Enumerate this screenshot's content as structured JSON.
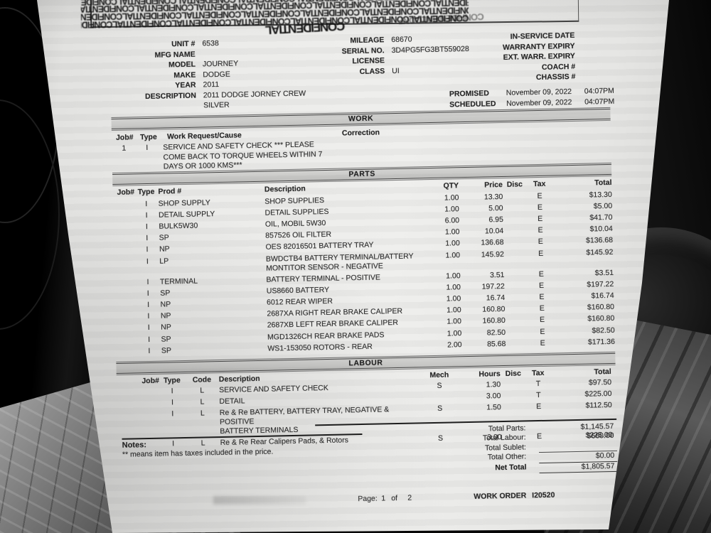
{
  "stamp": {
    "line": "CONFIDENTIALCONFIDENTIALCONFIDENTIALCONFIDENTIALCONFIDENTIALCONFIDENTIALCONFIDENTIAL"
  },
  "vehicle": {
    "left": [
      {
        "label": "UNIT #",
        "value": "6538"
      },
      {
        "label": "MFG NAME",
        "value": ""
      },
      {
        "label": "MODEL",
        "value": "JOURNEY"
      },
      {
        "label": "MAKE",
        "value": "DODGE"
      },
      {
        "label": "YEAR",
        "value": "2011"
      },
      {
        "label": "DESCRIPTION",
        "value": "2011 DODGE JORNEY CREW\nSILVER"
      }
    ],
    "mid": [
      {
        "label": "MILEAGE",
        "value": "68670"
      },
      {
        "label": "SERIAL NO.",
        "value": "3D4PG5FG3BT559028"
      },
      {
        "label": "LICENSE",
        "value": ""
      },
      {
        "label": "CLASS",
        "value": "UI"
      }
    ],
    "right": [
      {
        "label": "IN-SERVICE DATE",
        "value": ""
      },
      {
        "label": "WARRANTY EXPIRY",
        "value": ""
      },
      {
        "label": "EXT. WARR. EXPIRY",
        "value": ""
      },
      {
        "label": "COACH #",
        "value": ""
      },
      {
        "label": "CHASSIS #",
        "value": ""
      }
    ]
  },
  "schedule": {
    "promised_label": "PROMISED",
    "promised_date": "November 09, 2022",
    "promised_time": "04:07PM",
    "scheduled_label": "SCHEDULED",
    "scheduled_date": "November 09, 2022",
    "scheduled_time": "04:07PM"
  },
  "work": {
    "band": "WORK",
    "headers": {
      "job": "Job#",
      "type": "Type",
      "cause": "Work Request/Cause",
      "correction": "Correction"
    },
    "row": {
      "job": "1",
      "type": "I",
      "cause": "SERVICE AND SAFETY CHECK *** PLEASE\nCOME BACK TO TORQUE WHEELS WITHIN 7\nDAYS OR 1000 KMS***"
    }
  },
  "parts": {
    "band": "PARTS",
    "headers": {
      "job": "Job#",
      "type": "Type",
      "prod": "Prod #",
      "desc": "Description",
      "qty": "QTY",
      "price": "Price",
      "disc": "Disc",
      "tax": "Tax",
      "total": "Total"
    },
    "rows": [
      {
        "job": "",
        "type": "I",
        "prod": "SHOP SUPPLY",
        "desc": "SHOP SUPPLIES",
        "qty": "1.00",
        "price": "13.30",
        "disc": "",
        "tax": "E",
        "total": "$13.30"
      },
      {
        "job": "",
        "type": "I",
        "prod": "DETAIL SUPPLY",
        "desc": "DETAIL SUPPLIES",
        "qty": "1.00",
        "price": "5.00",
        "disc": "",
        "tax": "E",
        "total": "$5.00"
      },
      {
        "job": "",
        "type": "I",
        "prod": "BULK5W30",
        "desc": "OIL, MOBIL 5W30",
        "qty": "6.00",
        "price": "6.95",
        "disc": "",
        "tax": "E",
        "total": "$41.70"
      },
      {
        "job": "",
        "type": "I",
        "prod": "SP",
        "desc": "857526 OIL FILTER",
        "qty": "1.00",
        "price": "10.04",
        "disc": "",
        "tax": "E",
        "total": "$10.04"
      },
      {
        "job": "",
        "type": "I",
        "prod": "NP",
        "desc": "OES 82016501 BATTERY TRAY",
        "qty": "1.00",
        "price": "136.68",
        "disc": "",
        "tax": "E",
        "total": "$136.68"
      },
      {
        "job": "",
        "type": "I",
        "prod": "LP",
        "desc": "BWDCTB4 BATTERY TERMINAL/BATTERY\nMONTITOR SENSOR - NEGATIVE",
        "qty": "1.00",
        "price": "145.92",
        "disc": "",
        "tax": "E",
        "total": "$145.92"
      },
      {
        "job": "",
        "type": "I",
        "prod": "TERMINAL",
        "desc": "BATTERY TERMINAL - POSITIVE",
        "qty": "1.00",
        "price": "3.51",
        "disc": "",
        "tax": "E",
        "total": "$3.51"
      },
      {
        "job": "",
        "type": "I",
        "prod": "SP",
        "desc": "US8660 BATTERY",
        "qty": "1.00",
        "price": "197.22",
        "disc": "",
        "tax": "E",
        "total": "$197.22"
      },
      {
        "job": "",
        "type": "I",
        "prod": "NP",
        "desc": "6012 REAR WIPER",
        "qty": "1.00",
        "price": "16.74",
        "disc": "",
        "tax": "E",
        "total": "$16.74"
      },
      {
        "job": "",
        "type": "I",
        "prod": "NP",
        "desc": "2687XA RIGHT REAR BRAKE CALIPER",
        "qty": "1.00",
        "price": "160.80",
        "disc": "",
        "tax": "E",
        "total": "$160.80"
      },
      {
        "job": "",
        "type": "I",
        "prod": "NP",
        "desc": "2687XB LEFT REAR BRAKE CALIPER",
        "qty": "1.00",
        "price": "160.80",
        "disc": "",
        "tax": "E",
        "total": "$160.80"
      },
      {
        "job": "",
        "type": "I",
        "prod": "SP",
        "desc": "MGD1326CH REAR BRAKE PADS",
        "qty": "1.00",
        "price": "82.50",
        "disc": "",
        "tax": "E",
        "total": "$82.50"
      },
      {
        "job": "",
        "type": "I",
        "prod": "SP",
        "desc": "WS1-153050 ROTORS - REAR",
        "qty": "2.00",
        "price": "85.68",
        "disc": "",
        "tax": "E",
        "total": "$171.36"
      }
    ]
  },
  "labour": {
    "band": "LABOUR",
    "headers": {
      "job": "Job#",
      "type": "Type",
      "code": "Code",
      "desc": "Description",
      "mech": "Mech",
      "hours": "Hours",
      "disc": "Disc",
      "tax": "Tax",
      "total": "Total"
    },
    "rows": [
      {
        "job": "",
        "type": "I",
        "code": "L",
        "desc": "SERVICE AND SAFETY CHECK",
        "mech": "S",
        "hours": "1.30",
        "disc": "",
        "tax": "T",
        "total": "$97.50"
      },
      {
        "job": "",
        "type": "I",
        "code": "L",
        "desc": "DETAIL",
        "mech": "",
        "hours": "3.00",
        "disc": "",
        "tax": "T",
        "total": "$225.00"
      },
      {
        "job": "",
        "type": "I",
        "code": "L",
        "desc": "Re & Re BATTERY, BATTERY TRAY, NEGATIVE & POSITIVE\nBATTERY TERMINALS",
        "mech": "S",
        "hours": "1.50",
        "disc": "",
        "tax": "E",
        "total": "$112.50"
      },
      {
        "job": "",
        "type": "I",
        "code": "L",
        "desc": "Re & Re Rear Calipers Pads, & Rotors",
        "mech": "S",
        "hours": "3.00",
        "disc": "",
        "tax": "E",
        "total": "$225.00"
      }
    ]
  },
  "totals": {
    "rows": [
      {
        "label": "Total Parts:",
        "value": "$1,145.57"
      },
      {
        "label": "Total Labour:",
        "value": "$660.00"
      },
      {
        "label": "Total Sublet:",
        "value": ""
      },
      {
        "label": "Total Other:",
        "value": "$0.00"
      },
      {
        "label": "Net Total",
        "value": "$1,805.57"
      }
    ]
  },
  "notes": {
    "title": "Notes:",
    "text": "** means item has taxes included in the price."
  },
  "footer": {
    "page_label": "Page:",
    "page_current": "1",
    "of_label": "of",
    "page_total": "2",
    "work_order_label": "WORK ORDER",
    "work_order_number": "I20520"
  }
}
